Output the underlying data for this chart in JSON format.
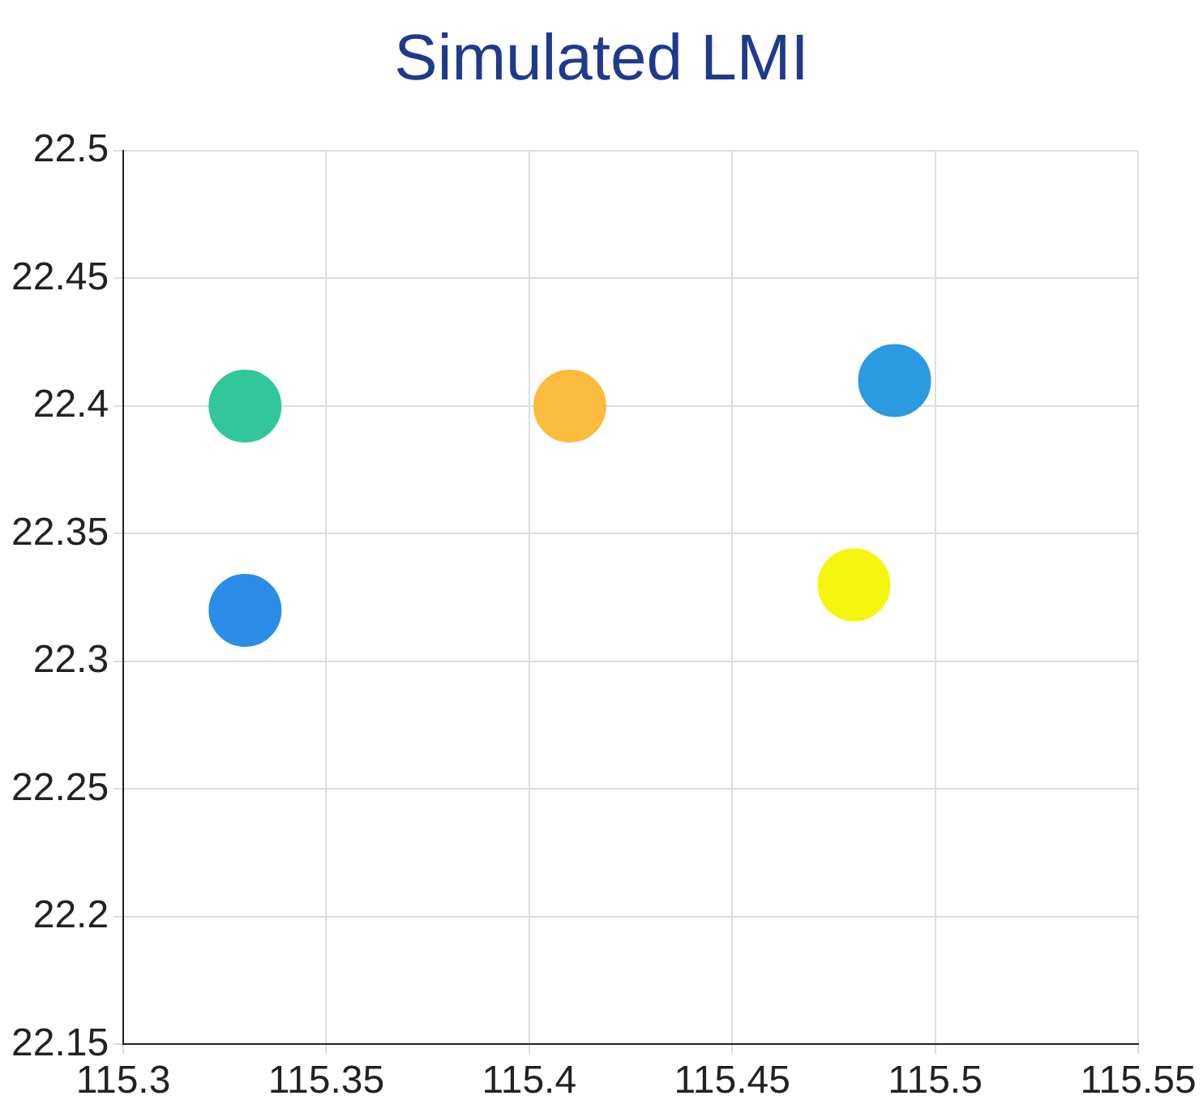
{
  "chart_data": {
    "type": "scatter",
    "title": "Simulated LMI",
    "x": [
      115.33,
      115.41,
      115.49,
      115.33,
      115.48
    ],
    "values": [
      22.4,
      22.4,
      22.41,
      22.32,
      22.33
    ],
    "colors": [
      "#31c79a",
      "#fbbb3d",
      "#2b9ae0",
      "#2a8ee8",
      "#f5f50f"
    ],
    "xlim": [
      115.3,
      115.55
    ],
    "xticks": [
      115.3,
      115.35,
      115.4,
      115.45,
      115.5,
      115.55
    ],
    "ylim": [
      22.15,
      22.5
    ],
    "yticks": [
      22.15,
      22.2,
      22.25,
      22.3,
      22.35,
      22.4,
      22.45,
      22.5
    ],
    "grid": true,
    "marker": "circle"
  }
}
